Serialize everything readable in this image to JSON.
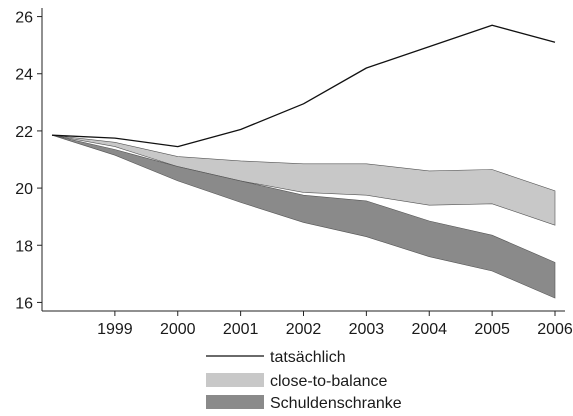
{
  "chart_data": {
    "type": "area",
    "x": [
      1998,
      1999,
      2000,
      2001,
      2002,
      2003,
      2004,
      2005,
      2006
    ],
    "x_tick_labels": [
      "1999",
      "2000",
      "2001",
      "2002",
      "2003",
      "2004",
      "2005",
      "2006"
    ],
    "y_ticks": [
      16,
      18,
      20,
      22,
      24,
      26
    ],
    "y_tick_labels": [
      "16",
      "18",
      "20",
      "22",
      "24",
      "26"
    ],
    "xlim": [
      1998,
      2006
    ],
    "ylim": [
      15.7,
      26.3
    ],
    "grid": false,
    "legend_position": "bottom",
    "series": [
      {
        "name": "tatsächlich",
        "kind": "line",
        "color": "#111111",
        "values": [
          21.85,
          21.75,
          21.45,
          22.05,
          22.95,
          24.2,
          24.95,
          25.7,
          25.1
        ]
      },
      {
        "name": "close-to-balance",
        "kind": "band",
        "color": "#c8c8c8",
        "upper": [
          21.85,
          21.6,
          21.1,
          20.95,
          20.85,
          20.85,
          20.6,
          20.65,
          19.9
        ],
        "lower": [
          21.85,
          21.45,
          20.75,
          20.25,
          19.85,
          19.75,
          19.4,
          19.45,
          18.7
        ]
      },
      {
        "name": "Schuldenschranke",
        "kind": "band",
        "color": "#8a8a8a",
        "upper": [
          21.85,
          21.35,
          20.75,
          20.25,
          19.75,
          19.55,
          18.85,
          18.35,
          17.4
        ],
        "lower": [
          21.85,
          21.15,
          20.25,
          19.5,
          18.8,
          18.3,
          17.6,
          17.1,
          16.15
        ]
      }
    ]
  }
}
